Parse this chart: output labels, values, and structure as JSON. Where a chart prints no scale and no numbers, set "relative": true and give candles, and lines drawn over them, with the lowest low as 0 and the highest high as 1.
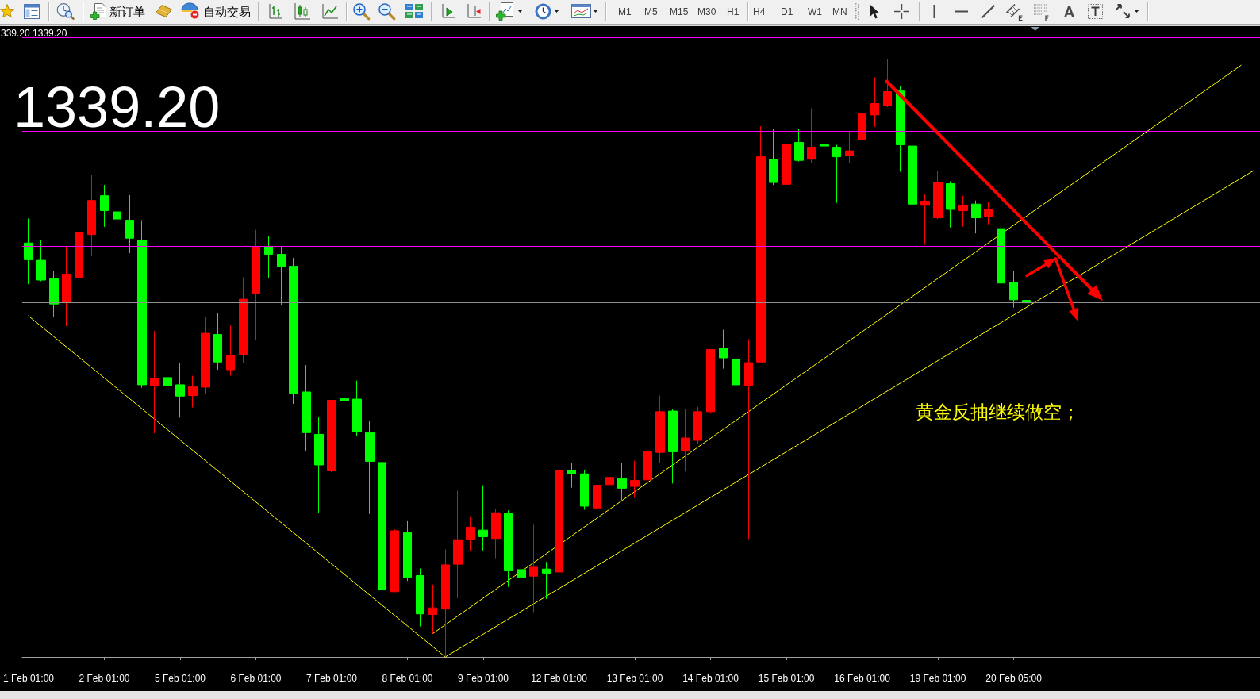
{
  "chart_data": {
    "type": "candlestick",
    "relative": true,
    "tick_labels": "x",
    "categories": [
      "1 Feb 01:00",
      null,
      null,
      null,
      null,
      null,
      "2 Feb 01:00",
      null,
      null,
      null,
      null,
      null,
      "5 Feb 01:00",
      null,
      null,
      null,
      null,
      null,
      "6 Feb 01:00",
      null,
      null,
      null,
      null,
      null,
      "7 Feb 01:00",
      null,
      null,
      null,
      null,
      null,
      "8 Feb 01:00",
      null,
      null,
      null,
      null,
      null,
      "9 Feb 01:00",
      null,
      null,
      null,
      null,
      null,
      "12 Feb 01:00",
      null,
      null,
      null,
      null,
      null,
      "13 Feb 01:00",
      null,
      null,
      null,
      null,
      null,
      "14 Feb 01:00",
      null,
      null,
      null,
      null,
      null,
      "15 Feb 01:00",
      null,
      null,
      null,
      null,
      null,
      "16 Feb 01:00",
      null,
      null,
      null,
      null,
      null,
      "19 Feb 01:00",
      null,
      null,
      null,
      null,
      null,
      "20 Feb 05:00",
      null,
      null,
      null,
      null,
      null,
      null,
      null,
      null,
      null,
      null,
      null,
      null,
      null,
      null,
      null,
      null,
      null,
      null,
      null
    ],
    "ohlc": [
      [
        0.692,
        0.733,
        0.623,
        0.664
      ],
      [
        0.663,
        0.697,
        0.628,
        0.63
      ],
      [
        0.632,
        0.645,
        0.569,
        0.59
      ],
      [
        0.592,
        0.687,
        0.553,
        0.64
      ],
      [
        0.634,
        0.718,
        0.61,
        0.71
      ],
      [
        0.706,
        0.805,
        0.67,
        0.763
      ],
      [
        0.771,
        0.789,
        0.719,
        0.746
      ],
      [
        0.744,
        0.758,
        0.722,
        0.732
      ],
      [
        0.73,
        0.772,
        0.675,
        0.7
      ],
      [
        0.697,
        0.73,
        0.45,
        0.455
      ],
      [
        0.453,
        0.545,
        0.374,
        0.466
      ],
      [
        0.467,
        0.471,
        0.386,
        0.453
      ],
      [
        0.455,
        0.492,
        0.4,
        0.436
      ],
      [
        0.437,
        0.47,
        0.417,
        0.452
      ],
      [
        0.451,
        0.569,
        0.44,
        0.541
      ],
      [
        0.539,
        0.575,
        0.48,
        0.493
      ],
      [
        0.48,
        0.554,
        0.47,
        0.504
      ],
      [
        0.506,
        0.635,
        0.491,
        0.598
      ],
      [
        0.607,
        0.714,
        0.529,
        0.686
      ],
      [
        0.686,
        0.704,
        0.634,
        0.673
      ],
      [
        0.673,
        0.686,
        0.588,
        0.653
      ],
      [
        0.653,
        0.667,
        0.423,
        0.441
      ],
      [
        0.443,
        0.488,
        0.344,
        0.375
      ],
      [
        0.372,
        0.402,
        0.241,
        0.321
      ],
      [
        0.311,
        0.429,
        0.309,
        0.429
      ],
      [
        0.432,
        0.447,
        0.389,
        0.428
      ],
      [
        0.431,
        0.462,
        0.37,
        0.376
      ],
      [
        0.375,
        0.395,
        0.239,
        0.327
      ],
      [
        0.325,
        0.339,
        0.079,
        0.112
      ],
      [
        0.109,
        0.213,
        0.109,
        0.211
      ],
      [
        0.208,
        0.227,
        0.127,
        0.133
      ],
      [
        0.136,
        0.148,
        0.051,
        0.072
      ],
      [
        0.071,
        0.121,
        0.039,
        0.082
      ],
      [
        0.08,
        0.18,
        0,
        0.154
      ],
      [
        0.155,
        0.278,
        0.098,
        0.196
      ],
      [
        0.197,
        0.235,
        0.177,
        0.217
      ],
      [
        0.212,
        0.287,
        0.178,
        0.201
      ],
      [
        0.198,
        0.247,
        0.165,
        0.241
      ],
      [
        0.24,
        0.245,
        0.117,
        0.144
      ],
      [
        0.146,
        0.203,
        0.093,
        0.133
      ],
      [
        0.135,
        0.221,
        0.075,
        0.15
      ],
      [
        0.147,
        0.159,
        0.097,
        0.14
      ],
      [
        0.142,
        0.362,
        0.126,
        0.311
      ],
      [
        0.312,
        0.325,
        0.283,
        0.306
      ],
      [
        0.306,
        0.312,
        0.246,
        0.252
      ],
      [
        0.249,
        0.295,
        0.182,
        0.287
      ],
      [
        0.288,
        0.349,
        0.268,
        0.3
      ],
      [
        0.298,
        0.324,
        0.262,
        0.282
      ],
      [
        0.285,
        0.328,
        0.266,
        0.295
      ],
      [
        0.296,
        0.394,
        0.296,
        0.343
      ],
      [
        0.342,
        0.437,
        0.324,
        0.41
      ],
      [
        0.411,
        0.414,
        0.29,
        0.343
      ],
      [
        0.344,
        0.414,
        0.31,
        0.366
      ],
      [
        0.362,
        0.418,
        0.357,
        0.41
      ],
      [
        0.41,
        0.514,
        0.407,
        0.514
      ],
      [
        0.516,
        0.547,
        0.482,
        0.5
      ],
      [
        0.498,
        0.5,
        0.421,
        0.455
      ],
      [
        0.453,
        0.531,
        0.197,
        0.492
      ],
      [
        0.493,
        0.887,
        0.493,
        0.836
      ],
      [
        0.832,
        0.883,
        0.789,
        0.793
      ],
      [
        0.79,
        0.881,
        0.78,
        0.857
      ],
      [
        0.86,
        0.883,
        0.828,
        0.83
      ],
      [
        0.832,
        0.917,
        0.825,
        0.852
      ],
      [
        0.856,
        0.866,
        0.755,
        0.854
      ],
      [
        0.852,
        0.856,
        0.759,
        0.836
      ],
      [
        0.838,
        0.878,
        0.826,
        0.846
      ],
      [
        0.864,
        0.921,
        0.828,
        0.908
      ],
      [
        0.906,
        0.969,
        0.886,
        0.925
      ],
      [
        0.921,
        1,
        0.919,
        0.945
      ],
      [
        0.946,
        0.954,
        0.811,
        0.856
      ],
      [
        0.854,
        0.908,
        0.746,
        0.757
      ],
      [
        0.755,
        0.773,
        0.689,
        0.762
      ],
      [
        0.734,
        0.812,
        0.732,
        0.793
      ],
      [
        0.791,
        0.795,
        0.718,
        0.748
      ],
      [
        0.746,
        0.771,
        0.719,
        0.755
      ],
      [
        0.757,
        0.763,
        0.708,
        0.734
      ],
      [
        0.736,
        0.761,
        0.723,
        0.748
      ],
      [
        0.716,
        0.753,
        0.616,
        0.625
      ],
      [
        0.626,
        0.645,
        0.584,
        0.597
      ],
      [
        0.596,
        0.596,
        0.592,
        0.592
      ],
      null,
      null,
      null,
      null,
      null,
      null,
      null,
      null,
      null,
      null,
      null,
      null,
      null,
      null,
      null,
      null,
      null,
      null
    ],
    "colors": [
      "#00ff00",
      "#00ff00",
      "#00ff00",
      "#ff0000",
      "#ff0000",
      "#ff0000",
      "#00ff00",
      "#00ff00",
      "#00ff00",
      "#00ff00",
      "#ff0000",
      "#00ff00",
      "#00ff00",
      "#ff0000",
      "#ff0000",
      "#00ff00",
      "#ff0000",
      "#ff0000",
      "#ff0000",
      "#00ff00",
      "#00ff00",
      "#00ff00",
      "#00ff00",
      "#00ff00",
      "#ff0000",
      "#00ff00",
      "#00ff00",
      "#00ff00",
      "#00ff00",
      "#ff0000",
      "#00ff00",
      "#00ff00",
      "#ff0000",
      "#ff0000",
      "#ff0000",
      "#ff0000",
      "#00ff00",
      "#ff0000",
      "#00ff00",
      "#00ff00",
      "#ff0000",
      "#00ff00",
      "#ff0000",
      "#00ff00",
      "#00ff00",
      "#ff0000",
      "#ff0000",
      "#00ff00",
      "#ff0000",
      "#ff0000",
      "#ff0000",
      "#00ff00",
      "#ff0000",
      "#ff0000",
      "#ff0000",
      "#00ff00",
      "#00ff00",
      "#ff0000",
      "#ff0000",
      "#00ff00",
      "#ff0000",
      "#00ff00",
      "#ff0000",
      "#00ff00",
      "#00ff00",
      "#ff0000",
      "#ff0000",
      "#ff0000",
      "#ff0000",
      "#00ff00",
      "#00ff00",
      "#ff0000",
      "#ff0000",
      "#00ff00",
      "#ff0000",
      "#00ff00",
      "#ff0000",
      "#00ff00",
      "#00ff00",
      "#00ff00",
      null,
      null,
      null,
      null,
      null,
      null,
      null,
      null,
      null,
      null,
      null,
      null,
      null,
      null,
      null,
      null,
      null,
      null
    ],
    "series": [
      {
        "type": "line",
        "color": "#ffff00",
        "values": [
          null,
          null,
          null,
          null,
          null,
          null,
          null,
          null,
          null,
          null,
          null,
          null,
          null,
          null,
          null,
          null,
          null,
          null,
          null,
          null,
          null,
          null,
          null,
          null,
          null,
          null,
          null,
          null,
          null,
          null,
          null,
          null,
          0.039,
          null,
          null,
          null,
          null,
          null,
          null,
          null,
          null,
          null,
          null,
          null,
          null,
          null,
          null,
          null,
          null,
          null,
          null,
          null,
          null,
          null,
          null,
          null,
          null,
          null,
          null,
          null,
          null,
          null,
          null,
          null,
          null,
          null,
          null,
          null,
          null,
          null,
          null,
          null,
          null,
          null,
          null,
          null,
          null,
          null,
          null,
          null,
          null,
          null,
          null,
          null,
          null,
          null,
          null,
          null,
          null,
          null,
          null,
          null,
          null,
          null,
          null,
          null,
          0.989,
          null
        ]
      },
      {
        "type": "line",
        "color": "#ffff00",
        "values": [
          null,
          null,
          null,
          null,
          null,
          null,
          null,
          null,
          null,
          null,
          null,
          null,
          null,
          null,
          null,
          null,
          null,
          null,
          null,
          null,
          null,
          null,
          null,
          null,
          null,
          null,
          null,
          null,
          null,
          null,
          null,
          null,
          null,
          0,
          null,
          null,
          null,
          null,
          null,
          null,
          null,
          null,
          null,
          null,
          null,
          null,
          null,
          null,
          null,
          null,
          null,
          null,
          null,
          null,
          null,
          null,
          null,
          null,
          null,
          null,
          null,
          null,
          null,
          null,
          null,
          null,
          null,
          null,
          null,
          null,
          null,
          null,
          null,
          null,
          null,
          null,
          null,
          null,
          null,
          null,
          null,
          null,
          null,
          null,
          null,
          null,
          null,
          null,
          null,
          null,
          null,
          null,
          null,
          null,
          null,
          null,
          null,
          0.813
        ]
      },
      {
        "type": "line",
        "color": "#ffff00",
        "values": [
          0.57,
          null,
          null,
          null,
          null,
          null,
          null,
          null,
          null,
          null,
          null,
          null,
          null,
          null,
          null,
          null,
          null,
          null,
          null,
          null,
          null,
          null,
          null,
          null,
          null,
          null,
          null,
          null,
          null,
          null,
          null,
          null,
          null,
          0,
          null,
          null,
          null,
          null,
          null,
          null,
          null,
          null,
          null,
          null,
          null,
          null,
          null,
          null,
          null,
          null,
          null,
          null,
          null,
          null,
          null,
          null,
          null,
          null,
          null,
          null,
          null,
          null,
          null,
          null,
          null,
          null,
          null,
          null,
          null,
          null,
          null,
          null,
          null,
          null,
          null,
          null,
          null,
          null,
          null,
          null,
          null,
          null,
          null,
          null,
          null,
          null,
          null,
          null,
          null,
          null,
          null,
          null,
          null,
          null,
          null,
          null,
          null,
          null
        ]
      }
    ],
    "ref_lines": [
      {
        "axis": "y",
        "value": 1.035,
        "color": "#ff00ff"
      },
      {
        "axis": "y",
        "value": 0.879,
        "color": "#ff00ff"
      },
      {
        "axis": "y",
        "value": 0.687,
        "color": "#ff00ff"
      },
      {
        "axis": "y",
        "value": 0.592,
        "color": "#909090"
      },
      {
        "axis": "y",
        "value": 0.453,
        "color": "#ff00ff"
      },
      {
        "axis": "y",
        "value": 0.164,
        "color": "#ff00ff"
      },
      {
        "axis": "y",
        "value": 0.024,
        "color": "#ff00ff"
      }
    ],
    "annotations": [
      "339.20 1339.20",
      "1339.20",
      "黄金反抽继续做空；",
      "新订单",
      "自动交易",
      "M1",
      "M5",
      "M15",
      "M30",
      "H1",
      "H4",
      "D1",
      "W1",
      "MN"
    ]
  }
}
